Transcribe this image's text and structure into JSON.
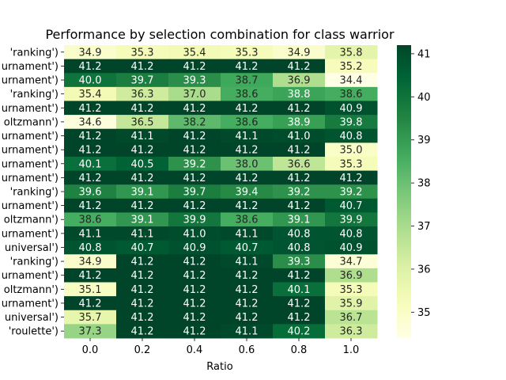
{
  "chart_data": {
    "type": "heatmap",
    "title": "Performance by selection combination for class warrior",
    "xlabel": "Ratio",
    "ylabel": "",
    "x_tick_labels": [
      "0.0",
      "0.2",
      "0.4",
      "0.6",
      "0.8",
      "1.0"
    ],
    "y_tick_labels": [
      "'ranking')",
      "urnament')",
      "urnament')",
      "'ranking')",
      "urnament')",
      "oltzmann')",
      "urnament')",
      "urnament')",
      "urnament')",
      "urnament')",
      "'ranking')",
      "urnament')",
      "oltzmann')",
      "urnament')",
      "universal')",
      "'ranking')",
      "urnament')",
      "oltzmann')",
      "urnament')",
      "universal')",
      "'roulette')"
    ],
    "values": [
      [
        34.9,
        35.3,
        35.4,
        35.3,
        34.9,
        35.8
      ],
      [
        41.2,
        41.2,
        41.2,
        41.2,
        41.2,
        35.2
      ],
      [
        40.0,
        39.7,
        39.3,
        38.7,
        36.9,
        34.4
      ],
      [
        35.4,
        36.3,
        37.0,
        38.6,
        38.8,
        38.6
      ],
      [
        41.2,
        41.2,
        41.2,
        41.2,
        41.2,
        40.9
      ],
      [
        34.6,
        36.5,
        38.2,
        38.6,
        38.9,
        39.8
      ],
      [
        41.2,
        41.1,
        41.2,
        41.1,
        41.0,
        40.8
      ],
      [
        41.2,
        41.2,
        41.2,
        41.2,
        41.2,
        35.0
      ],
      [
        40.1,
        40.5,
        39.2,
        38.0,
        36.6,
        35.3
      ],
      [
        41.2,
        41.2,
        41.2,
        41.2,
        41.2,
        41.2
      ],
      [
        39.6,
        39.1,
        39.7,
        39.4,
        39.2,
        39.2
      ],
      [
        41.2,
        41.2,
        41.2,
        41.2,
        41.2,
        40.7
      ],
      [
        38.6,
        39.1,
        39.9,
        38.6,
        39.1,
        39.9
      ],
      [
        41.1,
        41.1,
        41.0,
        41.1,
        40.8,
        40.8
      ],
      [
        40.8,
        40.7,
        40.9,
        40.7,
        40.8,
        40.9
      ],
      [
        34.9,
        41.2,
        41.2,
        41.1,
        39.3,
        34.7
      ],
      [
        41.2,
        41.2,
        41.2,
        41.2,
        41.2,
        36.9
      ],
      [
        35.1,
        41.2,
        41.2,
        41.2,
        40.1,
        35.3
      ],
      [
        41.2,
        41.2,
        41.2,
        41.2,
        41.2,
        35.9
      ],
      [
        35.7,
        41.2,
        41.2,
        41.2,
        41.2,
        36.7
      ],
      [
        37.3,
        41.2,
        41.2,
        41.1,
        40.2,
        36.3
      ]
    ],
    "colormap": "YlGn",
    "vmin": 34.4,
    "vmax": 41.2,
    "colorbar_ticks": [
      35,
      36,
      37,
      38,
      39,
      40,
      41
    ],
    "grid": false,
    "legend": "colorbar-right"
  }
}
